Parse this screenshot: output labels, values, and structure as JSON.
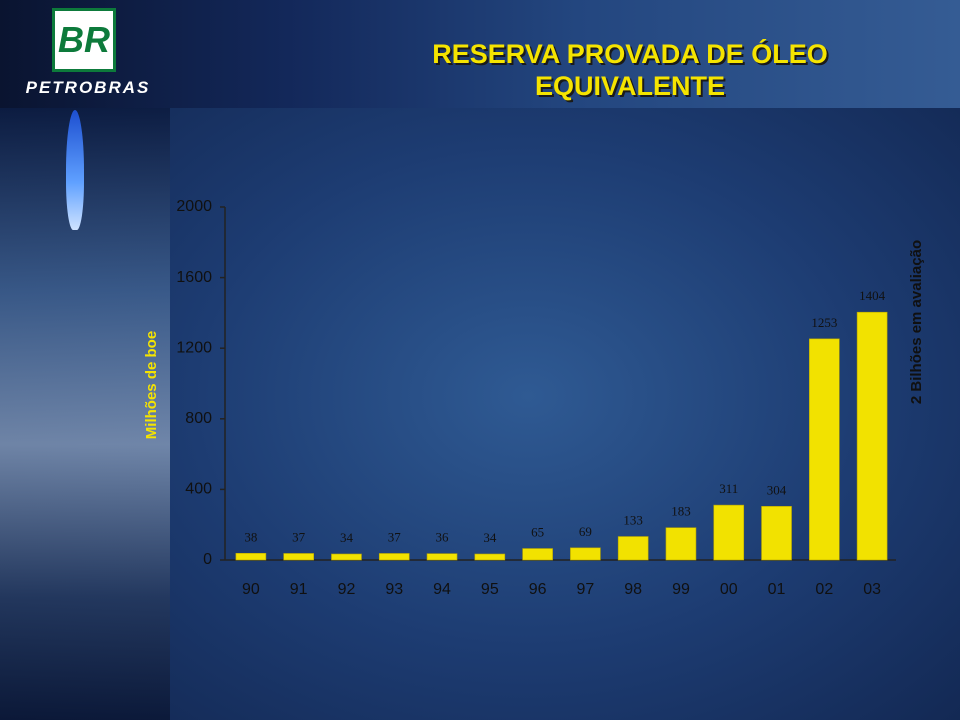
{
  "logo": {
    "mark": "BR",
    "name": "PETROBRAS"
  },
  "chart_data": {
    "type": "bar",
    "title": "RESERVA PROVADA DE ÓLEO EQUIVALENTE",
    "y_label": "Milhões de boe",
    "annotation": "2 Bilhões em avaliação",
    "categories": [
      "90",
      "91",
      "92",
      "93",
      "94",
      "95",
      "96",
      "97",
      "98",
      "99",
      "00",
      "01",
      "02",
      "03"
    ],
    "values": [
      38,
      37,
      34,
      37,
      36,
      34,
      65,
      69,
      133,
      183,
      311,
      304,
      1253,
      1404
    ],
    "color": "#f2e200",
    "ylim": [
      0,
      2000
    ],
    "yticks": [
      0,
      400,
      800,
      1200,
      1600,
      2000
    ],
    "grid": false
  }
}
